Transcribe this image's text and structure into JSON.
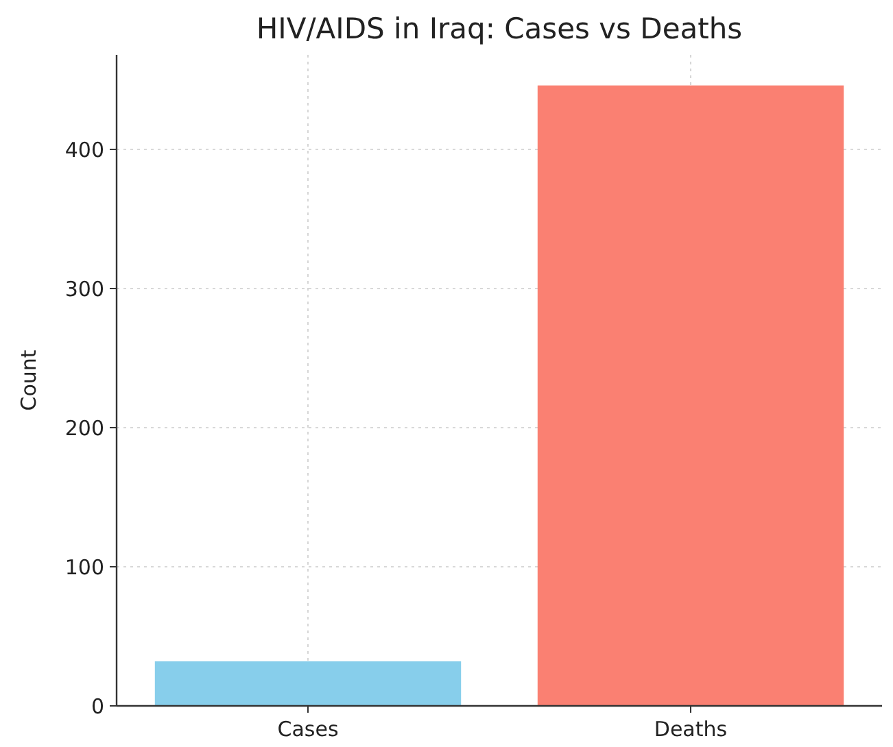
{
  "chart_data": {
    "type": "bar",
    "title": "HIV/AIDS in Iraq: Cases vs Deaths",
    "ylabel": "Count",
    "categories": [
      "Cases",
      "Deaths"
    ],
    "values": [
      32,
      446
    ],
    "colors": [
      "#87ceeb",
      "#fa8072"
    ],
    "ylim": [
      0,
      468
    ],
    "yticks": [
      0,
      100,
      200,
      300,
      400
    ],
    "grid": true
  }
}
